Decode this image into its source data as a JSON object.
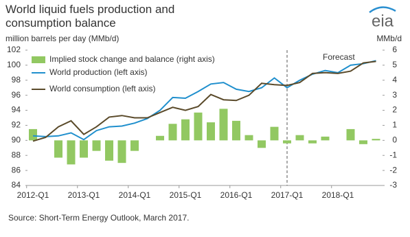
{
  "chart_data": {
    "type": "bar_line",
    "title": "World liquid fuels production and consumption balance",
    "subtitle": "million barrels per day (MMb/d)",
    "y2_label": "MMb/d",
    "logo": "eia",
    "annotation": "Forecast",
    "source": "Source: Short-Term Energy Outlook, March 2017.",
    "categories": [
      "2012-Q1",
      null,
      null,
      null,
      "2013-Q1",
      null,
      null,
      null,
      "2014-Q1",
      null,
      null,
      null,
      "2015-Q1",
      null,
      null,
      null,
      "2016-Q1",
      null,
      null,
      null,
      "2017-Q1",
      null,
      null,
      null,
      "2018-Q1",
      null,
      null,
      null
    ],
    "series": [
      {
        "name": "Implied stock change and balance (right axis)",
        "type": "bar",
        "axis": "y2",
        "color": "#92c862",
        "values": [
          0.75,
          0,
          -1.15,
          -1.6,
          -1.15,
          -0.7,
          -1.35,
          -1.5,
          -0.7,
          0,
          0.3,
          1.1,
          1.4,
          1.85,
          1.2,
          2.1,
          1.3,
          0.35,
          -0.5,
          0.9,
          -0.2,
          0.35,
          -0.2,
          0.25,
          0,
          0.75,
          -0.25,
          0.1
        ]
      },
      {
        "name": "World production (left axis)",
        "type": "line",
        "color": "#1f8fcd",
        "values": [
          90.6,
          90.5,
          90.6,
          91.0,
          90.1,
          91.3,
          91.8,
          91.9,
          92.3,
          92.9,
          94.0,
          95.7,
          95.6,
          96.5,
          97.5,
          97.7,
          96.8,
          96.5,
          97.0,
          98.3,
          97.0,
          98.0,
          98.8,
          99.3,
          99.0,
          100.0,
          100.2,
          100.6
        ]
      },
      {
        "name": "World consumption (left axis)",
        "type": "line",
        "color": "#5a4a2a",
        "values": [
          89.9,
          90.4,
          91.8,
          92.6,
          90.8,
          91.8,
          93.1,
          93.3,
          93.0,
          93.0,
          93.7,
          94.4,
          94.0,
          94.5,
          96.1,
          95.4,
          95.3,
          96.0,
          97.6,
          97.4,
          97.3,
          97.7,
          98.9,
          99.0,
          98.9,
          99.2,
          100.3,
          100.5
        ]
      }
    ],
    "ylim": [
      84,
      102
    ],
    "yticks": [
      84,
      86,
      88,
      90,
      92,
      94,
      96,
      98,
      100,
      102
    ],
    "y2lim": [
      -3,
      6
    ],
    "y2ticks": [
      -3,
      -2,
      -1,
      0,
      1,
      2,
      3,
      4,
      5,
      6
    ],
    "forecast_start": "2017-Q1",
    "grid": false,
    "legend": "upper left"
  }
}
